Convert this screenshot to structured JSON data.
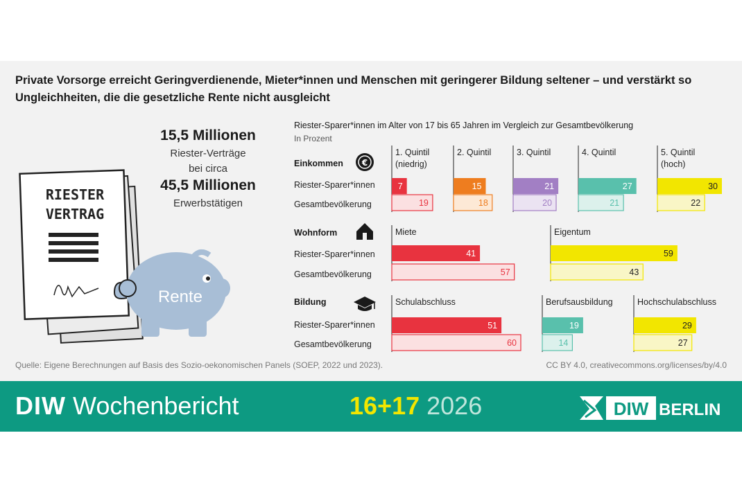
{
  "title": "Private Vorsorge erreicht Geringverdienende, Mieter*innen und Menschen mit geringerer Bildung seltener – und verstärkt so Ungleichheiten, die die gesetzliche Rente nicht ausgleicht",
  "stats": {
    "contracts_big": "15,5 Millionen",
    "contracts_label": "Riester-Verträge",
    "connector": "bei circa",
    "workers_big": "45,5 Millionen",
    "workers_label": "Erwerbstätigen"
  },
  "illustration": {
    "document_title_1": "RIESTER",
    "document_title_2": "VERTRAG",
    "piggy_label": "Rente"
  },
  "chart_data": {
    "type": "bar",
    "title": "Riester-Sparer*innen im Alter von 17 bis 65 Jahren im Vergleich zur Gesamtbevölkerung",
    "subtitle": "In Prozent",
    "series_names": [
      "Riester-Sparer*innen",
      "Gesamtbevölkerung"
    ],
    "groups": [
      {
        "label": "Einkommen",
        "icon": "euro-coin-icon",
        "categories": [
          {
            "label": "1. Quintil\n(niedrig)",
            "riester": 7,
            "gesamt": 19
          },
          {
            "label": "2. Quintil",
            "riester": 15,
            "gesamt": 18
          },
          {
            "label": "3. Quintil",
            "riester": 21,
            "gesamt": 20
          },
          {
            "label": "4. Quintil",
            "riester": 27,
            "gesamt": 21
          },
          {
            "label": "5. Quintil\n(hoch)",
            "riester": 30,
            "gesamt": 22
          }
        ]
      },
      {
        "label": "Wohnform",
        "icon": "house-icon",
        "categories": [
          {
            "label": "Miete",
            "riester": 41,
            "gesamt": 57
          },
          {
            "label": "Eigentum",
            "riester": 59,
            "gesamt": 43
          }
        ]
      },
      {
        "label": "Bildung",
        "icon": "graduation-cap-icon",
        "categories": [
          {
            "label": "Schulabschluss",
            "riester": 51,
            "gesamt": 60
          },
          {
            "label": "Berufsausbildung",
            "riester": 19,
            "gesamt": 14
          },
          {
            "label": "Hochschulabschluss",
            "riester": 29,
            "gesamt": 27
          }
        ]
      }
    ],
    "colors": {
      "einkommen": [
        [
          "#e8333f",
          "#fbe0e1"
        ],
        [
          "#ee7d1f",
          "#fde9d6"
        ],
        [
          "#a27fc4",
          "#ebe3f2"
        ],
        [
          "#59c0ac",
          "#dcf1ec"
        ],
        [
          "#f2e600",
          "#f9f6c6"
        ]
      ],
      "wohnform": [
        [
          "#e8333f",
          "#fbe0e1"
        ],
        [
          "#f2e600",
          "#f9f6c6"
        ]
      ],
      "bildung": [
        [
          "#e8333f",
          "#fbe0e1"
        ],
        [
          "#59c0ac",
          "#dcf1ec"
        ],
        [
          "#f2e600",
          "#f9f6c6"
        ]
      ]
    }
  },
  "source": "Quelle: Eigene Berechnungen auf Basis des Sozio-oekonomischen Panels (SOEP, 2022 und 2023).",
  "license": "CC BY 4.0, creativecommons.org/licenses/by/4.0",
  "footer": {
    "brand_bold": "DIW",
    "brand_word": "Wochenbericht",
    "issue": "16+17",
    "year": "2026",
    "logo_diw": "DIW",
    "logo_city": "BERLIN"
  }
}
